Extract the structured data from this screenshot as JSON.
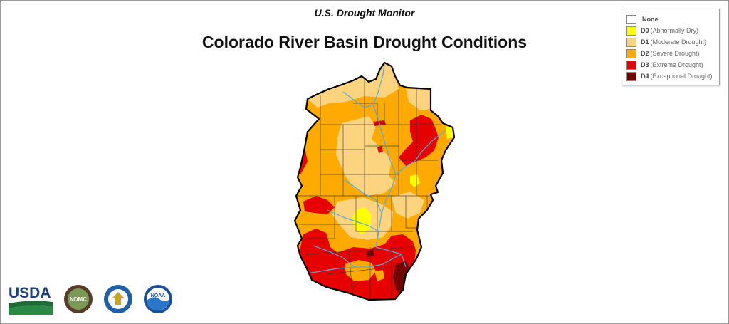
{
  "header": {
    "subtitle": "U.S. Drought Monitor",
    "title": "Colorado River Basin Drought Conditions"
  },
  "legend": {
    "items": [
      {
        "code": "",
        "label": "None",
        "color": "#ffffff"
      },
      {
        "code": "D0",
        "label": "(Abnormally Dry)",
        "color": "#ffff00"
      },
      {
        "code": "D1",
        "label": "(Moderate Drought)",
        "color": "#fcd37f"
      },
      {
        "code": "D2",
        "label": "(Severe Drought)",
        "color": "#ffaa00"
      },
      {
        "code": "D3",
        "label": "(Extreme Drought)",
        "color": "#e60000"
      },
      {
        "code": "D4",
        "label": "(Exceptional Drought)",
        "color": "#730000"
      }
    ]
  },
  "logos": {
    "usda": "USDA",
    "ndmc": "NDMC",
    "noaa": "NOAA"
  },
  "colors": {
    "river": "#5ba8d6",
    "county_lines": "#333333",
    "basin_outline": "#000000"
  }
}
